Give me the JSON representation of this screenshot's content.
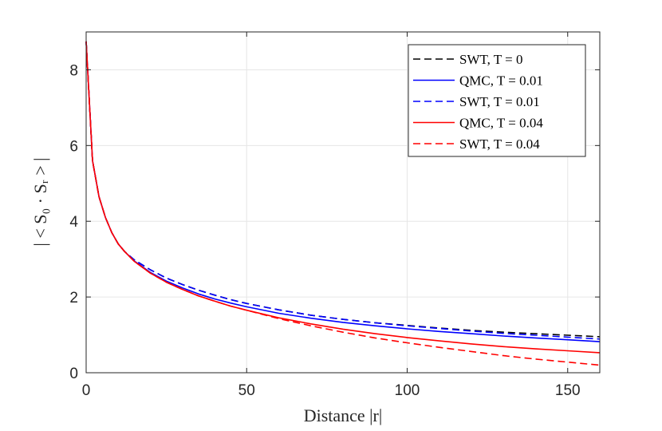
{
  "chart_data": {
    "type": "line",
    "title": "",
    "xlabel": "Distance |r|",
    "ylabel": "| < S₀ · Sᵣ > |",
    "xlim": [
      0,
      160
    ],
    "ylim": [
      0,
      9
    ],
    "xticks": [
      0,
      50,
      100,
      150
    ],
    "yticks": [
      0,
      2,
      4,
      6,
      8
    ],
    "grid": true,
    "legend_position": "top-right",
    "series": [
      {
        "name": "SWT, T = 0",
        "color": "#000000",
        "style": "dashed",
        "x": [
          0,
          2,
          4,
          6,
          8,
          10,
          12,
          15,
          20,
          25,
          30,
          35,
          40,
          45,
          50,
          60,
          70,
          80,
          90,
          100,
          110,
          120,
          130,
          140,
          150,
          160
        ],
        "y": [
          8.75,
          5.6,
          4.65,
          4.1,
          3.7,
          3.4,
          3.2,
          2.98,
          2.72,
          2.5,
          2.33,
          2.18,
          2.05,
          1.93,
          1.83,
          1.66,
          1.52,
          1.41,
          1.32,
          1.25,
          1.18,
          1.12,
          1.07,
          1.03,
          0.99,
          0.95
        ]
      },
      {
        "name": "QMC, T = 0.01",
        "color": "#0000ff",
        "style": "solid",
        "x": [
          0,
          2,
          4,
          6,
          8,
          10,
          12,
          15,
          20,
          25,
          30,
          35,
          40,
          45,
          50,
          60,
          70,
          80,
          90,
          100,
          110,
          120,
          130,
          140,
          150,
          160
        ],
        "y": [
          8.75,
          5.6,
          4.65,
          4.1,
          3.7,
          3.4,
          3.2,
          2.95,
          2.65,
          2.42,
          2.24,
          2.08,
          1.95,
          1.84,
          1.74,
          1.57,
          1.44,
          1.33,
          1.24,
          1.16,
          1.09,
          1.03,
          0.97,
          0.92,
          0.87,
          0.82
        ]
      },
      {
        "name": "SWT, T = 0.01",
        "color": "#0000ff",
        "style": "dashed",
        "x": [
          0,
          2,
          4,
          6,
          8,
          10,
          12,
          15,
          20,
          25,
          30,
          35,
          40,
          45,
          50,
          60,
          70,
          80,
          90,
          100,
          110,
          120,
          130,
          140,
          150,
          160
        ],
        "y": [
          8.75,
          5.6,
          4.65,
          4.1,
          3.7,
          3.4,
          3.2,
          2.98,
          2.72,
          2.5,
          2.33,
          2.18,
          2.05,
          1.93,
          1.83,
          1.66,
          1.52,
          1.41,
          1.32,
          1.24,
          1.17,
          1.1,
          1.04,
          0.99,
          0.94,
          0.89
        ]
      },
      {
        "name": "QMC, T = 0.04",
        "color": "#ff0000",
        "style": "solid",
        "x": [
          0,
          2,
          4,
          6,
          8,
          10,
          12,
          15,
          20,
          25,
          30,
          35,
          40,
          45,
          50,
          60,
          70,
          80,
          90,
          100,
          110,
          120,
          130,
          140,
          150,
          160
        ],
        "y": [
          8.75,
          5.6,
          4.65,
          4.1,
          3.7,
          3.4,
          3.2,
          2.94,
          2.63,
          2.39,
          2.2,
          2.03,
          1.89,
          1.76,
          1.65,
          1.45,
          1.29,
          1.15,
          1.03,
          0.93,
          0.84,
          0.76,
          0.69,
          0.63,
          0.58,
          0.53
        ]
      },
      {
        "name": "SWT, T = 0.04",
        "color": "#ff0000",
        "style": "dashed",
        "x": [
          0,
          2,
          4,
          6,
          8,
          10,
          12,
          15,
          20,
          25,
          30,
          35,
          40,
          45,
          50,
          60,
          70,
          80,
          90,
          100,
          110,
          120,
          130,
          140,
          150,
          160
        ],
        "y": [
          8.75,
          5.6,
          4.65,
          4.1,
          3.7,
          3.4,
          3.2,
          2.94,
          2.63,
          2.39,
          2.2,
          2.03,
          1.89,
          1.76,
          1.65,
          1.43,
          1.24,
          1.07,
          0.92,
          0.79,
          0.67,
          0.56,
          0.45,
          0.36,
          0.28,
          0.2
        ]
      }
    ]
  }
}
